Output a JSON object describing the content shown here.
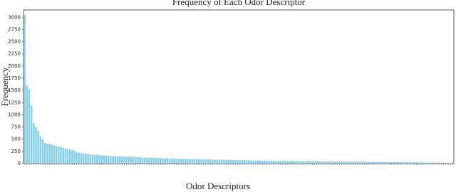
{
  "chart_data": {
    "type": "bar",
    "title": "Frequency of Each Odor Descriptor",
    "x_label": "Odor Descriptors",
    "y_label": "Frequency",
    "color": "#87ceeb",
    "ylim": [
      0,
      3150
    ],
    "yticks": [
      0,
      250,
      500,
      750,
      1000,
      1250,
      1500,
      1750,
      2000,
      2250,
      2500,
      2750,
      3000
    ],
    "categories": [
      null,
      null,
      null,
      null,
      null,
      null,
      null,
      null,
      null,
      null,
      null,
      null,
      null,
      null,
      null,
      null,
      null,
      null,
      null,
      null,
      null,
      null,
      null,
      null,
      null,
      null,
      null,
      null,
      null,
      null,
      null,
      null,
      null,
      null,
      null,
      null,
      null,
      null,
      null,
      null,
      null,
      null,
      null,
      null,
      null,
      null,
      null,
      null,
      null,
      null,
      null,
      null,
      null,
      null,
      null,
      null,
      null,
      null,
      null,
      null,
      null,
      null,
      null,
      null,
      null,
      null,
      null,
      null,
      null,
      null,
      null,
      null,
      null,
      null,
      null,
      null,
      null,
      null,
      null,
      null,
      null,
      null,
      null,
      null,
      null,
      null,
      null,
      null,
      null,
      null,
      null,
      null,
      null,
      null,
      null,
      null,
      null,
      null,
      null,
      null,
      null,
      null,
      null,
      null,
      null,
      null,
      null,
      null,
      null,
      null,
      null,
      null,
      null,
      null,
      null,
      null,
      null,
      null,
      null,
      null,
      null,
      null,
      null,
      null,
      null,
      null,
      null,
      null,
      null,
      null,
      null,
      null,
      null,
      null,
      null,
      null,
      null,
      null,
      null,
      null,
      null,
      null,
      null,
      null,
      null,
      null,
      null,
      null,
      null,
      null,
      null,
      null,
      null,
      null,
      null,
      null,
      null,
      null,
      null,
      null,
      null,
      null,
      null,
      null,
      null,
      null,
      null,
      null,
      null,
      null,
      null,
      null,
      null,
      null,
      null,
      null,
      null,
      null,
      null,
      null,
      null,
      null,
      null,
      null,
      null,
      null,
      null,
      null,
      null,
      null
    ],
    "values": [
      3050,
      1600,
      1530,
      1190,
      830,
      750,
      670,
      560,
      500,
      420,
      410,
      400,
      390,
      370,
      360,
      350,
      340,
      320,
      310,
      300,
      290,
      280,
      265,
      230,
      225,
      215,
      205,
      200,
      195,
      190,
      185,
      180,
      178,
      175,
      170,
      165,
      162,
      160,
      158,
      155,
      152,
      150,
      148,
      146,
      144,
      142,
      140,
      138,
      136,
      134,
      132,
      130,
      128,
      126,
      124,
      122,
      120,
      118,
      116,
      114,
      112,
      110,
      108,
      106,
      104,
      102,
      100,
      99,
      98,
      97,
      96,
      95,
      94,
      93,
      92,
      91,
      90,
      89,
      88,
      87,
      86,
      85,
      84,
      83,
      82,
      81,
      80,
      79,
      78,
      77,
      76,
      75,
      74,
      73,
      72,
      71,
      70,
      69,
      68,
      67,
      66,
      65,
      64,
      63,
      62,
      61,
      60,
      59,
      58,
      57,
      56,
      56,
      55,
      55,
      54,
      54,
      53,
      53,
      52,
      52,
      51,
      51,
      50,
      50,
      49,
      49,
      48,
      48,
      47,
      47,
      46,
      46,
      45,
      45,
      44,
      44,
      43,
      43,
      42,
      42,
      41,
      41,
      40,
      40,
      39,
      39,
      38,
      38,
      37,
      37,
      36,
      36,
      35,
      35,
      34,
      34,
      33,
      33,
      32,
      32,
      31,
      31,
      30,
      30,
      29,
      29,
      28,
      28,
      27,
      27,
      26,
      26,
      25,
      25,
      24,
      24,
      23,
      23,
      22,
      22,
      21,
      21,
      20,
      20,
      20,
      19,
      19,
      18,
      18,
      18
    ]
  }
}
